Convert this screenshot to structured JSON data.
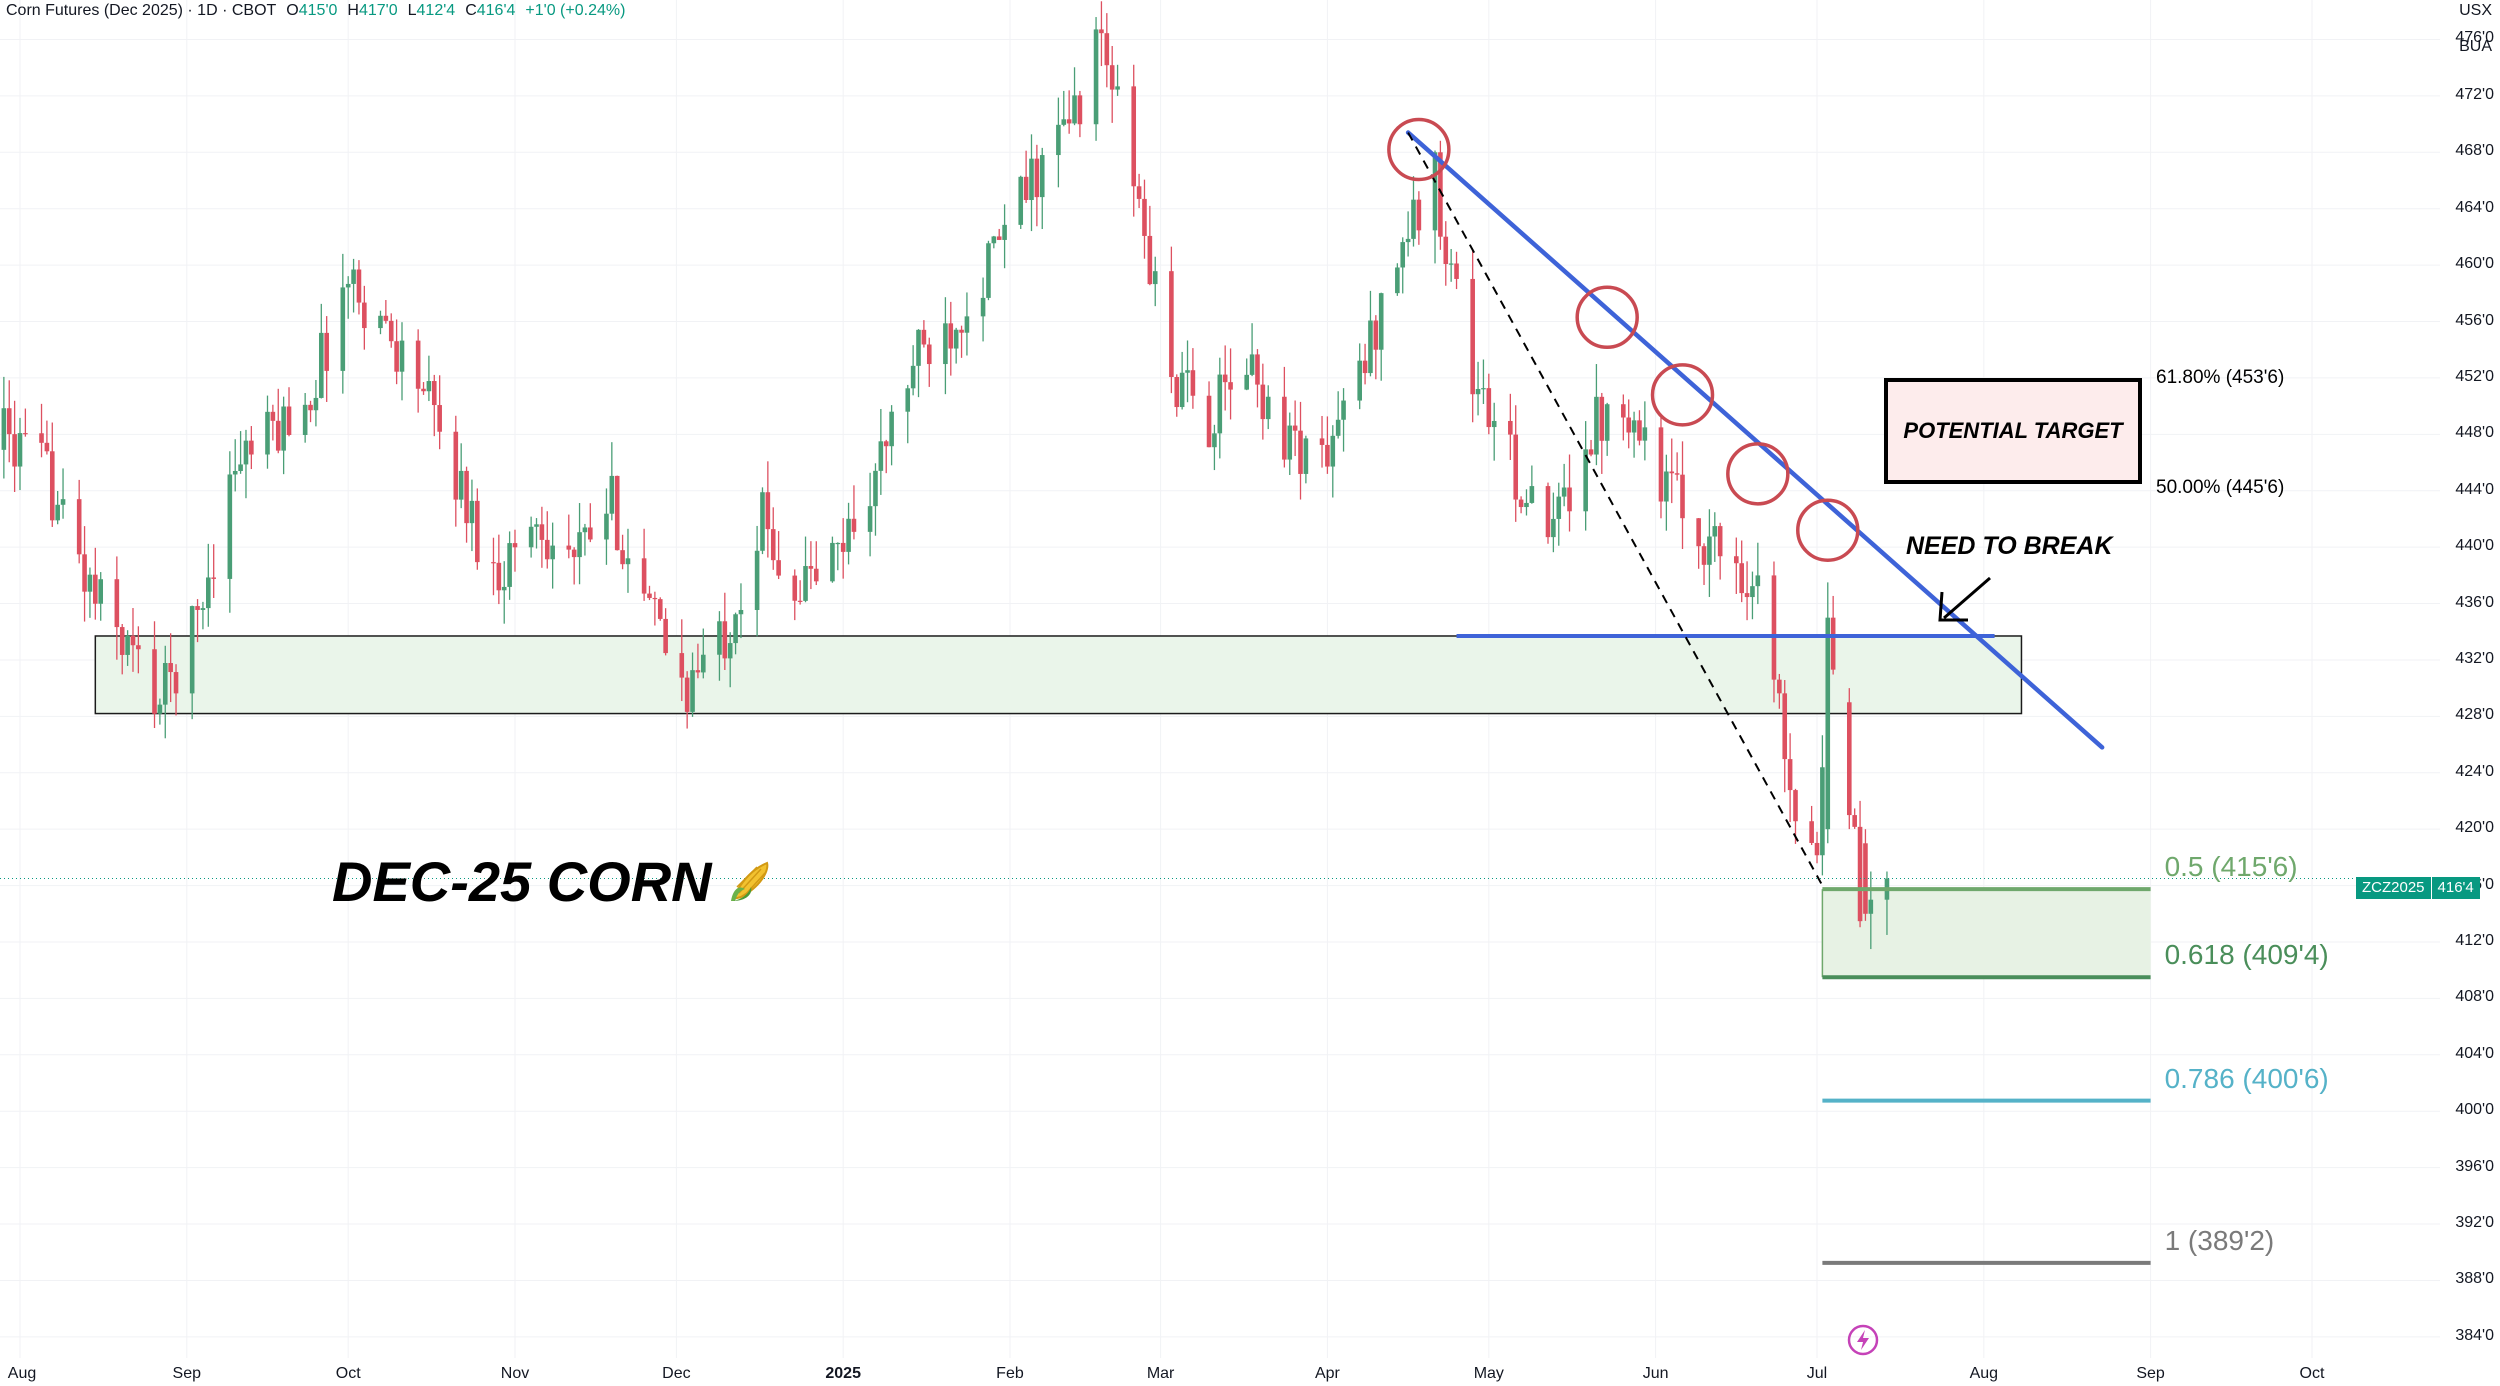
{
  "header": {
    "symbol": "Corn Futures (Dec 2025) · 1D · CBOT",
    "open_label": "O",
    "open": "415'0",
    "high_label": "H",
    "high": "417'0",
    "low_label": "L",
    "low": "412'4",
    "close_label": "C",
    "close": "416'4",
    "change": "+1'0 (+0.24%)",
    "currency": "USX",
    "unit": "BUA"
  },
  "price_badge": {
    "ticker": "ZCZ2025",
    "price": "416'4"
  },
  "chart_title": "DEC-25 CORN",
  "title_icon": "corn-icon",
  "annotations": {
    "potential_target": "POTENTIAL TARGET",
    "need_to_break": "NEED TO BREAK",
    "fib_618": "61.80% (453'6)",
    "fib_500": "50.00% (445'6)"
  },
  "colors": {
    "up": "#4a9e76",
    "down": "#dd5060",
    "trendline": "#3e63d8",
    "circles": "#c94a52",
    "support_zone": "#eaf5ea",
    "ret_05": "#6fa86c",
    "ret_0618": "#4a8e5a",
    "ret_0786": "#55b2c8",
    "ret_1": "#7a7a7a"
  },
  "chart_data": {
    "type": "candlestick",
    "title": "",
    "y_axis": {
      "labels": [
        "476'0",
        "472'0",
        "468'0",
        "464'0",
        "460'0",
        "456'0",
        "452'0",
        "448'0",
        "444'0",
        "440'0",
        "436'0",
        "432'0",
        "428'0",
        "424'0",
        "420'0",
        "416'0",
        "412'0",
        "408'0",
        "404'0",
        "400'0",
        "396'0",
        "392'0",
        "388'0",
        "384'0"
      ],
      "values": [
        476,
        472,
        468,
        464,
        460,
        456,
        452,
        448,
        444,
        440,
        436,
        432,
        428,
        424,
        420,
        416,
        412,
        408,
        404,
        400,
        396,
        392,
        388,
        384
      ],
      "range": [
        382.5,
        478.8
      ]
    },
    "x_axis": {
      "labels": [
        "Aug",
        "Sep",
        "Oct",
        "Nov",
        "Dec",
        "2025",
        "Feb",
        "Mar",
        "Apr",
        "May",
        "Jun",
        "Jul",
        "Aug",
        "Sep",
        "Oct"
      ],
      "dates": [
        "2024-08-01",
        "2024-09-01",
        "2024-10-01",
        "2024-11-01",
        "2024-12-01",
        "2025-01-01",
        "2025-02-01",
        "2025-03-01",
        "2025-04-01",
        "2025-05-01",
        "2025-06-01",
        "2025-07-01",
        "2025-08-01",
        "2025-09-01",
        "2025-10-01"
      ]
    },
    "price_path": [
      [
        "2024-07-26",
        449
      ],
      [
        "2024-08-06",
        445
      ],
      [
        "2024-08-14",
        437
      ],
      [
        "2024-08-21",
        433
      ],
      [
        "2024-08-27",
        429
      ],
      [
        "2024-09-03",
        435
      ],
      [
        "2024-09-10",
        446
      ],
      [
        "2024-09-17",
        448
      ],
      [
        "2024-09-24",
        451
      ],
      [
        "2024-10-01",
        459
      ],
      [
        "2024-10-07",
        456
      ],
      [
        "2024-10-14",
        452
      ],
      [
        "2024-10-21",
        445
      ],
      [
        "2024-10-28",
        438
      ],
      [
        "2024-11-05",
        442
      ],
      [
        "2024-11-12",
        439
      ],
      [
        "2024-11-19",
        443
      ],
      [
        "2024-11-25",
        436
      ],
      [
        "2024-12-03",
        430
      ],
      [
        "2024-12-10",
        434
      ],
      [
        "2024-12-17",
        442
      ],
      [
        "2024-12-23",
        437
      ],
      [
        "2024-12-30",
        439
      ],
      [
        "2025-01-07",
        445
      ],
      [
        "2025-01-14",
        453
      ],
      [
        "2025-01-21",
        456
      ],
      [
        "2025-01-28",
        460
      ],
      [
        "2025-02-05",
        466
      ],
      [
        "2025-02-12",
        470
      ],
      [
        "2025-02-18",
        476
      ],
      [
        "2025-02-24",
        466
      ],
      [
        "2025-03-03",
        452
      ],
      [
        "2025-03-10",
        449
      ],
      [
        "2025-03-17",
        453
      ],
      [
        "2025-03-24",
        448
      ],
      [
        "2025-03-31",
        446
      ],
      [
        "2025-04-07",
        452
      ],
      [
        "2025-04-14",
        461
      ],
      [
        "2025-04-21",
        466
      ],
      [
        "2025-04-28",
        452
      ],
      [
        "2025-05-05",
        446
      ],
      [
        "2025-05-12",
        440
      ],
      [
        "2025-05-19",
        448
      ],
      [
        "2025-05-26",
        451
      ],
      [
        "2025-06-02",
        445
      ],
      [
        "2025-06-09",
        441
      ],
      [
        "2025-06-16",
        439
      ],
      [
        "2025-06-20",
        437
      ],
      [
        "2025-06-27",
        422
      ],
      [
        "2025-07-01",
        419
      ],
      [
        "2025-07-03",
        432
      ],
      [
        "2025-07-07",
        423
      ],
      [
        "2025-07-09",
        414
      ],
      [
        "2025-07-14",
        416.5
      ]
    ],
    "last_price": 416.5,
    "support_zone": {
      "from": "2024-08-15",
      "to": "2025-08-08",
      "top": 433.7,
      "bottom": 428.2
    },
    "horizontal_level": {
      "from": "2025-04-25",
      "to": "2025-08-03",
      "price": 433.7
    },
    "trendline": [
      [
        "2025-04-16",
        469.4
      ],
      [
        "2025-08-23",
        425.8
      ]
    ],
    "dashed_line": [
      [
        "2025-04-16",
        469.4
      ],
      [
        "2025-07-02",
        416.0
      ]
    ],
    "touch_points": [
      [
        "2025-04-18",
        468.2
      ],
      [
        "2025-05-23",
        456.3
      ],
      [
        "2025-06-06",
        450.8
      ],
      [
        "2025-06-20",
        445.2
      ],
      [
        "2025-07-03",
        441.2
      ]
    ],
    "fib_retracement": {
      "levels": [
        {
          "label": "0.5 (415'6)",
          "value": 415.75,
          "role": "ret_05"
        },
        {
          "label": "0.618 (409'4)",
          "value": 409.5,
          "role": "ret_0618"
        },
        {
          "label": "0.786 (400'6)",
          "value": 400.75,
          "role": "ret_0786"
        },
        {
          "label": "1 (389'2)",
          "value": 389.25,
          "role": "ret_1"
        }
      ],
      "from": "2025-07-02",
      "to": "2025-09-01"
    },
    "fib_target_levels": [
      {
        "label": "61.80% (453'6)",
        "value": 453.75
      },
      {
        "label": "50.00% (445'6)",
        "value": 445.75
      }
    ]
  }
}
